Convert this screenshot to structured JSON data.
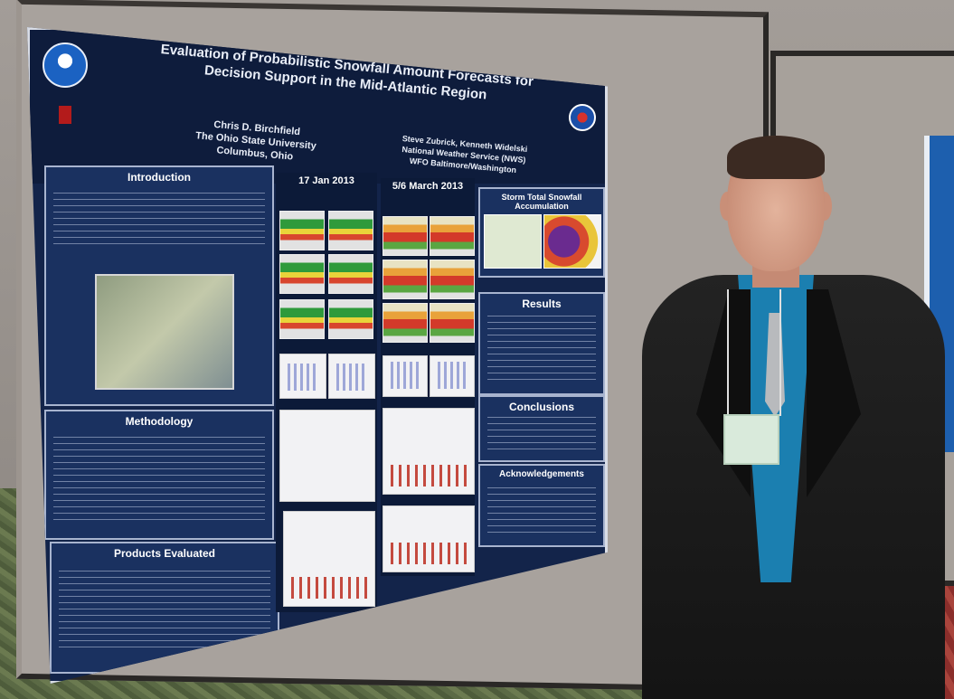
{
  "poster": {
    "title": "Evaluation of Probabilistic Snowfall Amount Forecasts for Decision Support in the Mid-Atlantic Region",
    "author": {
      "name": "Chris D. Birchfield",
      "affiliation": "The Ohio State University",
      "location": "Columbus, Ohio"
    },
    "coauthor": {
      "name": "Steve Zubrick, Kenneth Widelski",
      "affiliation": "National Weather Service (NWS)",
      "office": "WFO Baltimore/Washington"
    },
    "sections": {
      "introduction": "Introduction",
      "methodology": "Methodology",
      "products": "Products Evaluated",
      "jan": "17 Jan 2013",
      "march": "5/6 March 2013",
      "storm_total": "Storm Total Snowfall Accumulation",
      "results": "Results",
      "conclusions": "Conclusions",
      "acknowledgements": "Acknowledgements"
    }
  },
  "colors": {
    "poster_bg": "#13244a",
    "wall": "#a39d98",
    "shirt": "#1b7fb0"
  }
}
